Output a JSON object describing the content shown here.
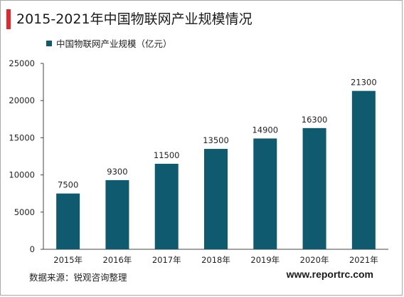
{
  "header": {
    "title": "2015-2021年中国物联网产业规模情况",
    "accent_color": "#e8262b"
  },
  "footer": {
    "source": "数据来源：锐观咨询整理",
    "website": "www.reportrc.com"
  },
  "chart_data": {
    "type": "bar",
    "title": "2015-2021年中国物联网产业规模情况",
    "categories": [
      "2015年",
      "2016年",
      "2017年",
      "2018年",
      "2019年",
      "2020年",
      "2021年"
    ],
    "series": [
      {
        "name": "中国物联网产业规模（亿元）",
        "values": [
          7500,
          9300,
          11500,
          13500,
          14900,
          16300,
          21300
        ],
        "color": "#0f5a6f"
      }
    ],
    "ylim": [
      0,
      25000
    ],
    "yticks": [
      0,
      5000,
      10000,
      15000,
      20000,
      25000
    ],
    "xlabel": "",
    "ylabel": "",
    "grid": false,
    "legend_position": "top-left",
    "data_labels": true
  }
}
